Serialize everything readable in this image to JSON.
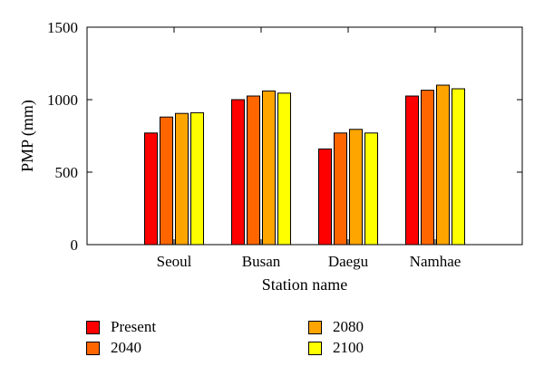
{
  "chart_data": {
    "type": "bar",
    "title": "",
    "xlabel": "Station name",
    "ylabel": "PMP (mm)",
    "ylim": [
      0,
      1500
    ],
    "yticks": [
      0,
      500,
      1000,
      1500
    ],
    "categories": [
      "Seoul",
      "Busan",
      "Daegu",
      "Namhae"
    ],
    "series": [
      {
        "name": "Present",
        "color": "#ff0000",
        "values": [
          770,
          1000,
          660,
          1025
        ]
      },
      {
        "name": "2040",
        "color": "#ff6600",
        "values": [
          880,
          1025,
          770,
          1065
        ]
      },
      {
        "name": "2080",
        "color": "#ffa500",
        "values": [
          905,
          1060,
          795,
          1100
        ]
      },
      {
        "name": "2100",
        "color": "#ffff00",
        "values": [
          910,
          1045,
          770,
          1075
        ]
      }
    ],
    "grid": false,
    "legend_placement": "bottom"
  }
}
